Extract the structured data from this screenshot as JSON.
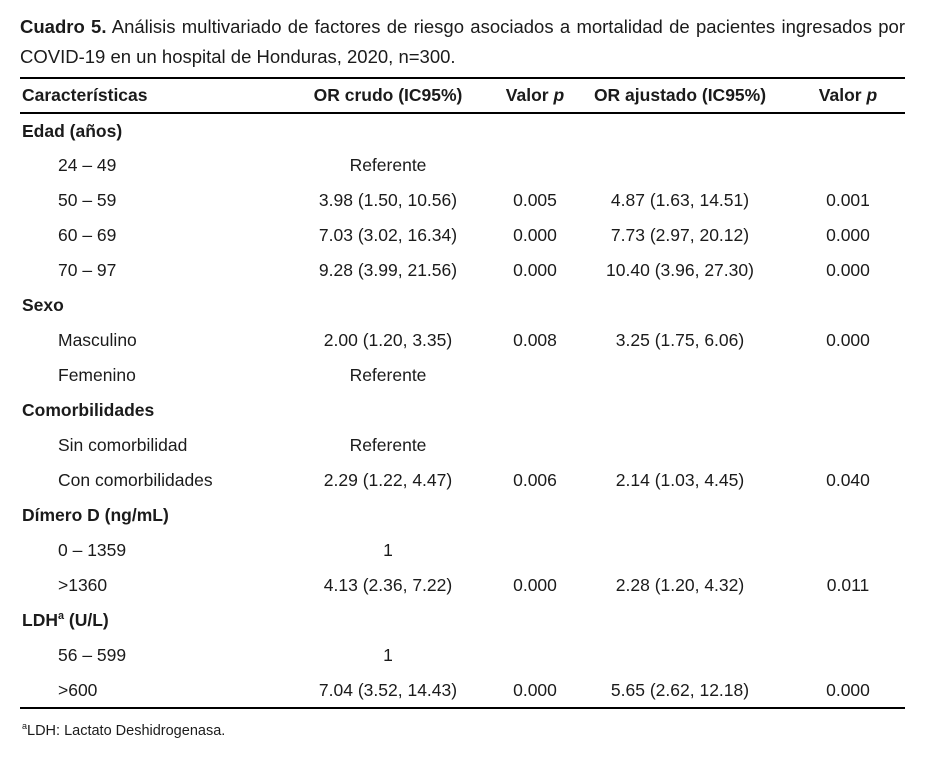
{
  "caption": {
    "label": "Cuadro 5.",
    "text": "Análisis multivariado de factores de riesgo asociados a mortalidad de pacientes ingresados por COVID-19 en un hospital de Honduras, 2020, n=300."
  },
  "table": {
    "headers": {
      "characteristics": "Características",
      "or_crude": "OR crudo (IC95%)",
      "valor": "Valor",
      "p_italic": "p",
      "or_adjusted": "OR ajustado (IC95%)"
    },
    "rows": [
      {
        "type": "group",
        "label": "Edad (años)"
      },
      {
        "type": "item",
        "label": "24 – 49",
        "cells": [
          "Referente",
          "",
          "",
          ""
        ]
      },
      {
        "type": "item",
        "label": "50 – 59",
        "cells": [
          "3.98 (1.50, 10.56)",
          "0.005",
          "4.87 (1.63, 14.51)",
          "0.001"
        ]
      },
      {
        "type": "item",
        "label": "60 – 69",
        "cells": [
          "7.03 (3.02, 16.34)",
          "0.000",
          "7.73 (2.97, 20.12)",
          "0.000"
        ]
      },
      {
        "type": "item",
        "label": "70 – 97",
        "cells": [
          "9.28 (3.99, 21.56)",
          "0.000",
          "10.40 (3.96, 27.30)",
          "0.000"
        ]
      },
      {
        "type": "group",
        "label": "Sexo"
      },
      {
        "type": "item",
        "label": "Masculino",
        "cells": [
          "2.00 (1.20, 3.35)",
          "0.008",
          "3.25 (1.75, 6.06)",
          "0.000"
        ]
      },
      {
        "type": "item",
        "label": "Femenino",
        "cells": [
          "Referente",
          "",
          "",
          ""
        ]
      },
      {
        "type": "group",
        "label": "Comorbilidades"
      },
      {
        "type": "item",
        "label": "Sin comorbilidad",
        "cells": [
          "Referente",
          "",
          "",
          ""
        ]
      },
      {
        "type": "item",
        "label": "Con comorbilidades",
        "cells": [
          "2.29 (1.22, 4.47)",
          "0.006",
          "2.14 (1.03, 4.45)",
          "0.040"
        ]
      },
      {
        "type": "group",
        "label": "Dímero D (ng/mL)"
      },
      {
        "type": "item",
        "label": "0 – 1359",
        "cells": [
          "1",
          "",
          "",
          ""
        ]
      },
      {
        "type": "item",
        "label": ">1360",
        "cells": [
          "4.13 (2.36, 7.22)",
          "0.000",
          "2.28 (1.20, 4.32)",
          "0.011"
        ]
      },
      {
        "type": "group",
        "label": "LDH",
        "sup": "a",
        "label_after": " (U/L)"
      },
      {
        "type": "item",
        "label": "56 – 599",
        "cells": [
          "1",
          "",
          "",
          ""
        ]
      },
      {
        "type": "item",
        "label": ">600",
        "cells": [
          "7.04 (3.52, 14.43)",
          "0.000",
          "5.65 (2.62, 12.18)",
          "0.000"
        ]
      }
    ]
  },
  "footnote": {
    "sup": "a",
    "text": "LDH: Lactato Deshidrogenasa."
  }
}
